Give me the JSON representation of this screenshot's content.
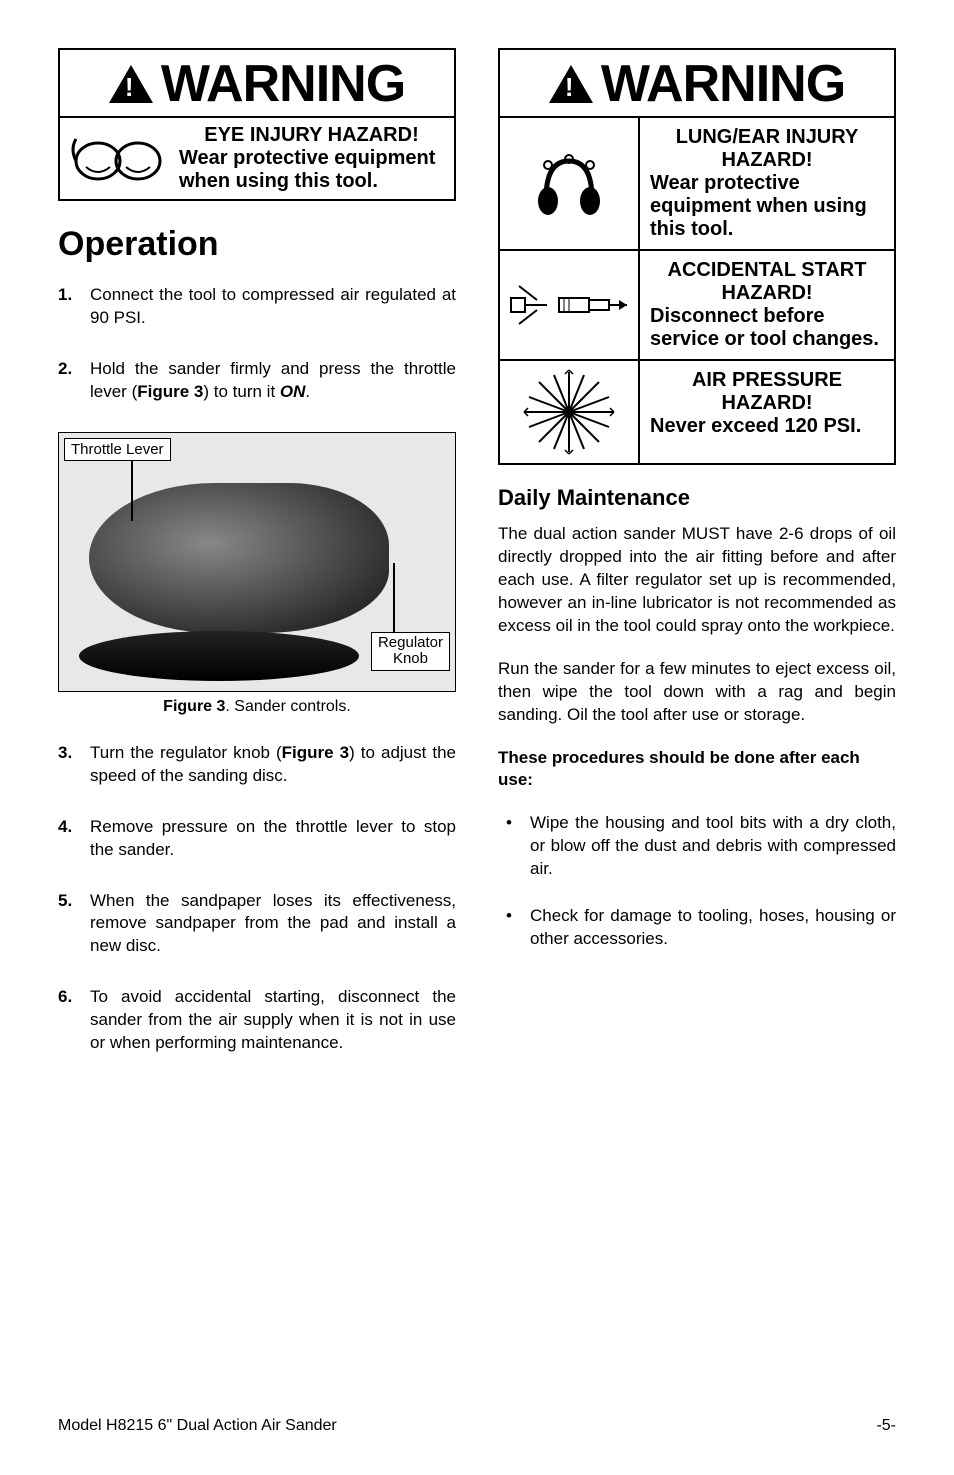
{
  "left": {
    "warning": {
      "word": "WARNING",
      "title": "EYE INJURY HAZARD!",
      "text": "Wear protective equipment when using this tool."
    },
    "section_heading": "Operation",
    "steps_a": [
      "Connect the tool to compressed air regulated at 90 PSI.",
      "Hold the sander firmly and press the throttle lever (<b>Figure 3</b>) to turn it <b><i>ON</i></b>."
    ],
    "figure": {
      "label_tl": "Throttle Lever",
      "label_br": "Regulator\nKnob",
      "caption_bold": "Figure 3",
      "caption_rest": ". Sander controls."
    },
    "steps_b": [
      "Turn the regulator knob (<b>Figure 3</b>) to adjust the speed of the sanding disc.",
      "Remove pressure on the throttle lever to stop the sander.",
      "When the sandpaper loses its effectiveness, remove sandpaper from the pad and install a new disc.",
      "To avoid accidental starting, disconnect the sander from the air supply when it is not in use or when performing maintenance."
    ]
  },
  "right": {
    "warning": {
      "word": "WARNING",
      "rows": [
        {
          "title": "LUNG/EAR INJURY HAZARD!",
          "text": "Wear protective equipment when using this tool."
        },
        {
          "title": "ACCIDENTAL START HAZARD!",
          "text": "Disconnect before service or tool changes."
        },
        {
          "title": "AIR PRESSURE HAZARD!",
          "text": "Never exceed 120 PSI."
        }
      ]
    },
    "subsection_heading": "Daily Maintenance",
    "para1": "The dual action sander MUST have 2-6 drops of oil directly dropped into the air fitting before and after each use. A filter regulator set up is recommended, however an in-line lubricator is not recommended as excess oil in the tool could spray onto the workpiece.",
    "para2": "Run the sander for a few minutes to eject excess oil, then wipe the tool down with a rag and begin sanding. Oil the tool after use or storage.",
    "procedures_head": "These procedures should be done after each use:",
    "bullets": [
      "Wipe the housing and tool bits with a dry cloth, or blow off the dust and debris with compressed air.",
      "Check for damage to tooling, hoses, housing or other accessories."
    ]
  },
  "footer": {
    "left": "Model H8215  6\" Dual Action Air Sander",
    "right": "-5-"
  },
  "colors": {
    "text": "#000000",
    "bg": "#ffffff",
    "figure_bg": "#e8e8e8"
  }
}
